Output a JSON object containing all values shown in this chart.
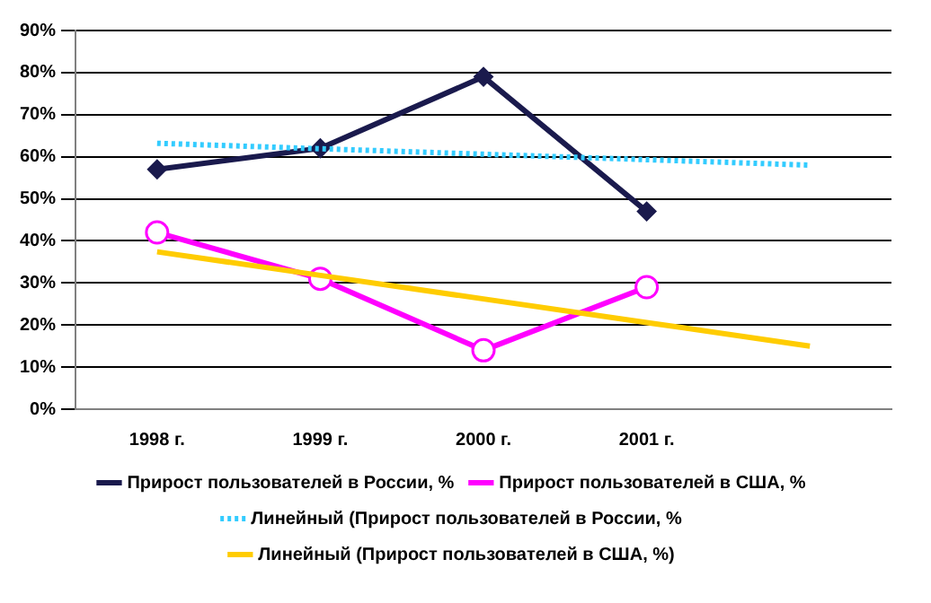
{
  "chart_data": {
    "type": "line",
    "categories": [
      "1998 г.",
      "1999 г.",
      "2000 г.",
      "2001 г.",
      null
    ],
    "series": [
      {
        "name": "Прирост пользователей в России, %",
        "color": "#1a1a4d",
        "values": [
          57,
          62,
          79,
          47,
          null
        ],
        "marker": "diamond",
        "line_style": "solid"
      },
      {
        "name": "Прирост пользователей в США, %",
        "color": "#ff00ff",
        "values": [
          42,
          31,
          14,
          29,
          null
        ],
        "marker": "circle",
        "line_style": "solid"
      },
      {
        "name": "Линейный (Прирост пользователей в России, %",
        "color": "#33ccff",
        "values": [
          63.2,
          61.9,
          60.6,
          59.3,
          58.0
        ],
        "marker": "none",
        "line_style": "dotted"
      },
      {
        "name": "Линейный (Прирост пользователей в США, %)",
        "color": "#ffcc00",
        "values": [
          37.4,
          31.8,
          26.2,
          20.6,
          15.0
        ],
        "marker": "none",
        "line_style": "solid"
      }
    ],
    "ylim": [
      0,
      90
    ],
    "yticks": [
      {
        "value": 0,
        "label": "0%"
      },
      {
        "value": 10,
        "label": "10%"
      },
      {
        "value": 20,
        "label": "20%"
      },
      {
        "value": 30,
        "label": "30%"
      },
      {
        "value": 40,
        "label": "40%"
      },
      {
        "value": 50,
        "label": "50%"
      },
      {
        "value": 60,
        "label": "60%"
      },
      {
        "value": 70,
        "label": "70%"
      },
      {
        "value": 80,
        "label": "80%"
      },
      {
        "value": 90,
        "label": "90%"
      }
    ],
    "grid": "y",
    "legend": "bottom"
  }
}
